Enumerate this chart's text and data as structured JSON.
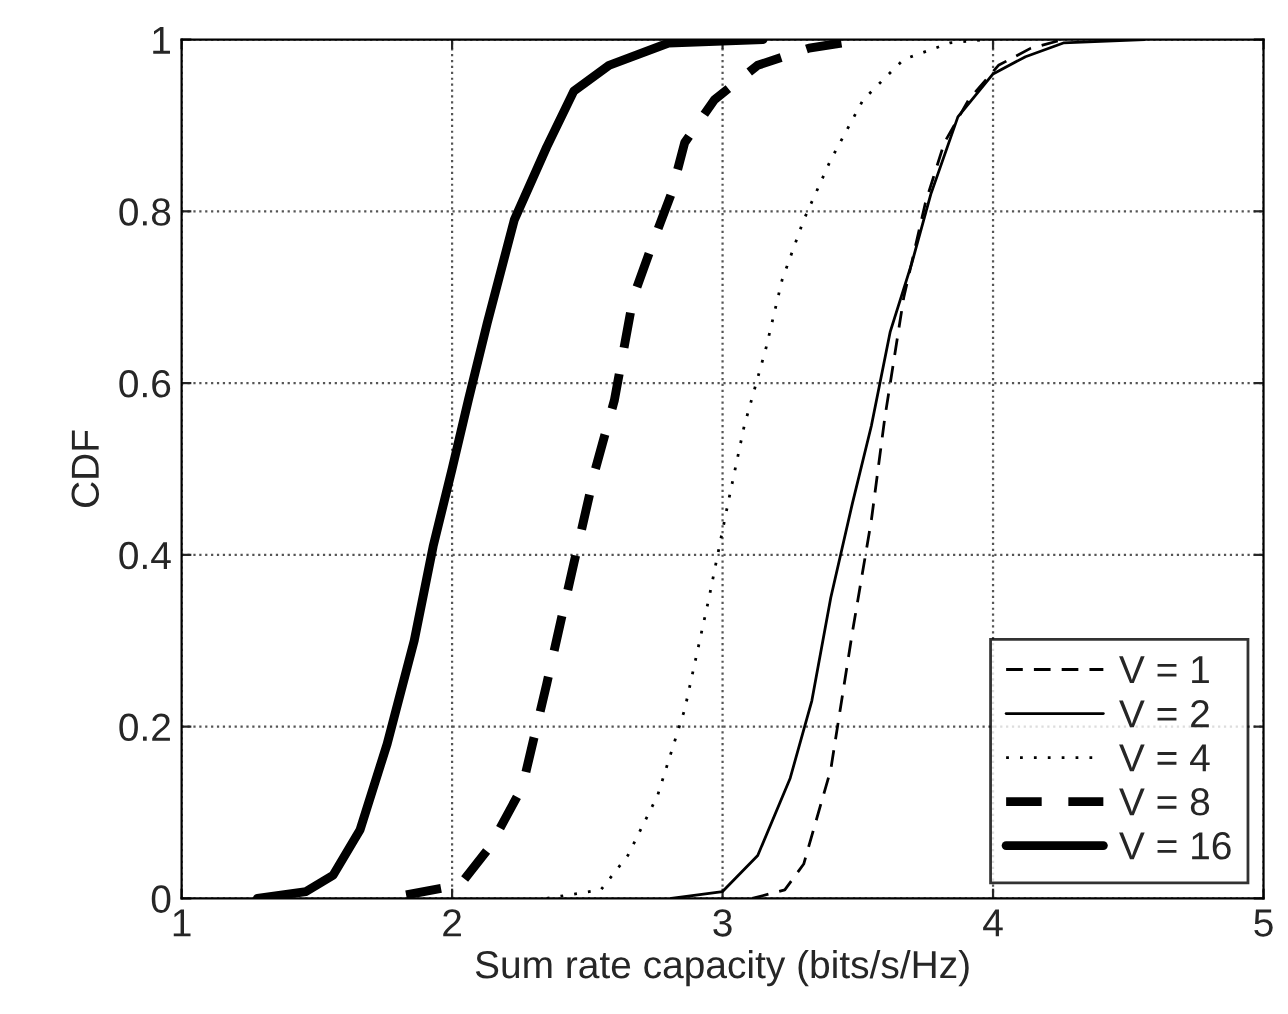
{
  "chart_data": {
    "type": "line",
    "xlabel": "Sum rate capacity (bits/s/Hz)",
    "ylabel": "CDF",
    "xlim": [
      1,
      5
    ],
    "xticks": [
      1,
      2,
      3,
      4,
      5
    ],
    "ylim": [
      0,
      1
    ],
    "yticks": [
      0,
      0.2,
      0.4,
      0.6,
      0.8,
      1
    ],
    "grid": true,
    "legend": "bottom right",
    "series": [
      {
        "name": "V = 1",
        "color": "#000000",
        "line_style": "dashed",
        "x": [
          3.11,
          3.23,
          3.3,
          3.4,
          3.48,
          3.55,
          3.6,
          3.67,
          3.75,
          3.82,
          3.91,
          4.02,
          4.14,
          4.26
        ],
        "values": [
          0,
          0.01,
          0.04,
          0.15,
          0.31,
          0.44,
          0.56,
          0.7,
          0.81,
          0.88,
          0.93,
          0.97,
          0.99,
          1
        ]
      },
      {
        "name": "V = 2",
        "color": "#000000",
        "line_style": "solid",
        "x": [
          2.81,
          3.0,
          3.13,
          3.25,
          3.33,
          3.4,
          3.48,
          3.55,
          3.62,
          3.7,
          3.77,
          3.87,
          4.0,
          4.12,
          4.26,
          4.56
        ],
        "values": [
          0,
          0.008,
          0.05,
          0.14,
          0.23,
          0.35,
          0.46,
          0.55,
          0.66,
          0.74,
          0.82,
          0.91,
          0.96,
          0.98,
          0.996,
          1
        ]
      },
      {
        "name": "V = 4",
        "color": "#000000",
        "line_style": "dotted",
        "x": [
          2.35,
          2.55,
          2.65,
          2.76,
          2.86,
          2.95,
          3.02,
          3.08,
          3.16,
          3.22,
          3.3,
          3.4,
          3.52,
          3.67,
          3.84,
          3.97
        ],
        "values": [
          0,
          0.01,
          0.05,
          0.12,
          0.22,
          0.35,
          0.46,
          0.55,
          0.64,
          0.72,
          0.79,
          0.86,
          0.93,
          0.977,
          0.996,
          1
        ]
      },
      {
        "name": "V = 8",
        "color": "#000000",
        "line_style": "dashed",
        "x": [
          1.83,
          2.03,
          2.14,
          2.26,
          2.35,
          2.45,
          2.53,
          2.6,
          2.67,
          2.75,
          2.81,
          2.86,
          2.97,
          3.13,
          3.32,
          3.52
        ],
        "values": [
          0.004,
          0.016,
          0.06,
          0.13,
          0.25,
          0.39,
          0.5,
          0.58,
          0.7,
          0.77,
          0.82,
          0.88,
          0.93,
          0.97,
          0.99,
          1
        ]
      },
      {
        "name": "V = 16",
        "color": "#000000",
        "line_style": "solid",
        "x": [
          1.28,
          1.46,
          1.56,
          1.66,
          1.76,
          1.86,
          1.93,
          2.0,
          2.06,
          2.13,
          2.23,
          2.35,
          2.45,
          2.58,
          2.8,
          3.15
        ],
        "values": [
          0,
          0.008,
          0.027,
          0.08,
          0.18,
          0.3,
          0.41,
          0.5,
          0.58,
          0.67,
          0.79,
          0.875,
          0.94,
          0.97,
          0.996,
          1
        ]
      }
    ]
  }
}
